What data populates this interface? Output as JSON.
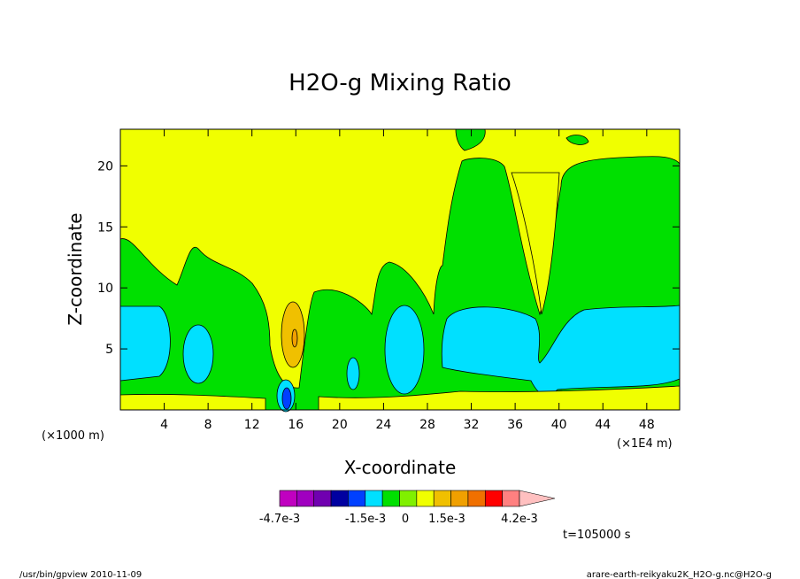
{
  "chart_data": {
    "type": "heatmap",
    "title": "H2O-g Mixing Ratio",
    "xlabel": "X-coordinate",
    "ylabel": "Z-coordinate",
    "x_unit_left": "(×1000 m)",
    "x_unit_right": "(×1E4 m)",
    "xlim": [
      0,
      51
    ],
    "ylim": [
      0,
      23
    ],
    "x_ticks": [
      4,
      8,
      12,
      16,
      20,
      24,
      28,
      32,
      36,
      40,
      44,
      48
    ],
    "y_ticks": [
      5,
      10,
      15,
      20
    ],
    "grid": false,
    "colorbar": {
      "levels": [
        "-4.7e-3",
        "-1.5e-3",
        "0",
        "1.5e-3",
        "4.2e-3"
      ],
      "colors": [
        "#c000c0",
        "#a000c0",
        "#7000b0",
        "#0000a0",
        "#0040ff",
        "#00e0ff",
        "#00e000",
        "#80f000",
        "#f0ff00",
        "#f0c000",
        "#f0a000",
        "#f07000",
        "#ff0000",
        "#ff8080",
        "#ffc0c0"
      ]
    },
    "time_label": "t=105000 s",
    "regions": [
      {
        "name": "background",
        "level": "0",
        "color": "#f0ff00"
      },
      {
        "name": "mid-lower band",
        "level": "-1.5e-3",
        "color": "#00e000"
      },
      {
        "name": "low cyan pockets",
        "level": "-4.7e-3",
        "color": "#00e0ff"
      },
      {
        "name": "positive pocket near x=16",
        "level": "1.5e-3",
        "color": "#f0c000"
      }
    ]
  },
  "footer": {
    "left": "/usr/bin/gpview  2010-11-09",
    "right": "arare-earth-reikyaku2K_H2O-g.nc@H2O-g"
  }
}
